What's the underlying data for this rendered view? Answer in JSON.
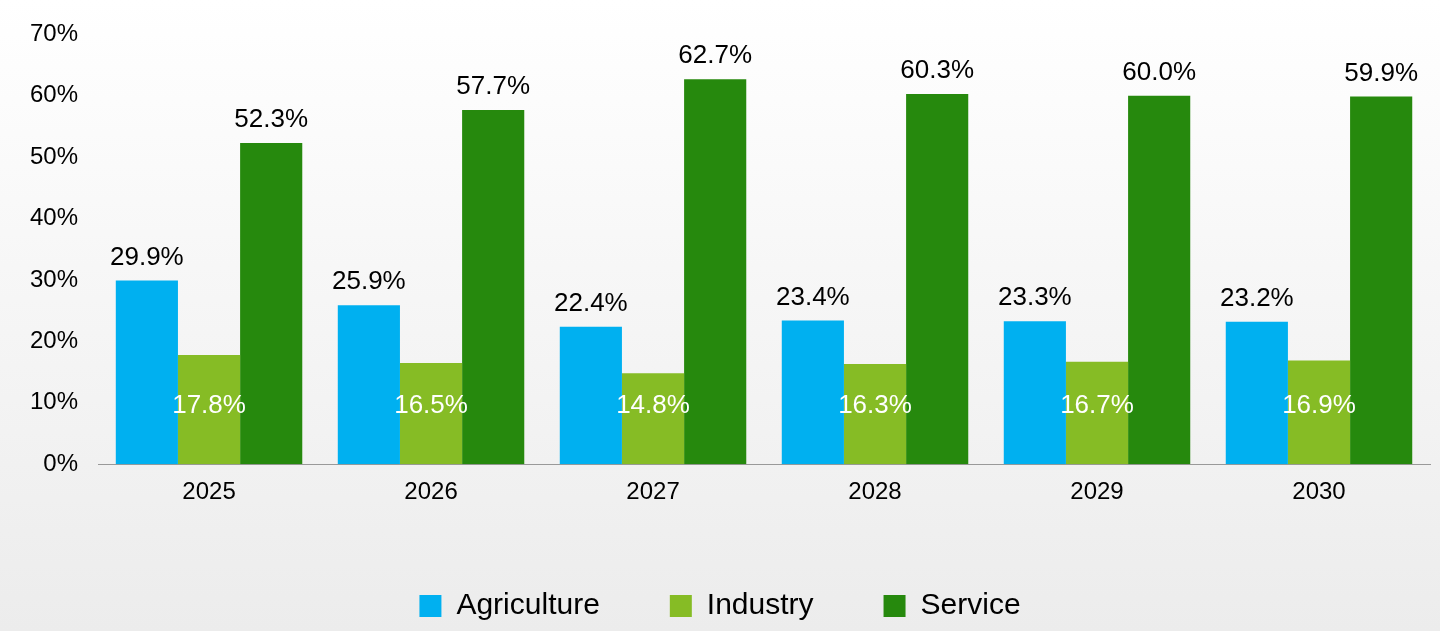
{
  "chart_data": {
    "type": "bar",
    "categories": [
      "2025",
      "2026",
      "2027",
      "2028",
      "2029",
      "2030"
    ],
    "series": [
      {
        "name": "Agriculture",
        "color": "#00b0f0",
        "values": [
          29.9,
          25.9,
          22.4,
          23.4,
          23.3,
          23.2
        ],
        "value_labels": [
          "29.9%",
          "25.9%",
          "22.4%",
          "23.4%",
          "23.3%",
          "23.2%"
        ]
      },
      {
        "name": "Industry",
        "color": "#86bc25",
        "values": [
          17.8,
          16.5,
          14.8,
          16.3,
          16.7,
          16.9
        ],
        "value_labels": [
          "17.8%",
          "16.5%",
          "14.8%",
          "16.3%",
          "16.7%",
          "16.9%"
        ]
      },
      {
        "name": "Service",
        "color": "#26890d",
        "values": [
          52.3,
          57.7,
          62.7,
          60.3,
          60.0,
          59.9
        ],
        "value_labels": [
          "52.3%",
          "57.7%",
          "62.7%",
          "60.3%",
          "60.0%",
          "59.9%"
        ]
      }
    ],
    "ylim": [
      0,
      70
    ],
    "yticks": [
      {
        "value": 0,
        "label": "0%"
      },
      {
        "value": 10,
        "label": "10%"
      },
      {
        "value": 20,
        "label": "20%"
      },
      {
        "value": 30,
        "label": "30%"
      },
      {
        "value": 40,
        "label": "40%"
      },
      {
        "value": 50,
        "label": "50%"
      },
      {
        "value": 60,
        "label": "60%"
      },
      {
        "value": 70,
        "label": "70%"
      }
    ],
    "grid": false,
    "legend": "bottom"
  }
}
